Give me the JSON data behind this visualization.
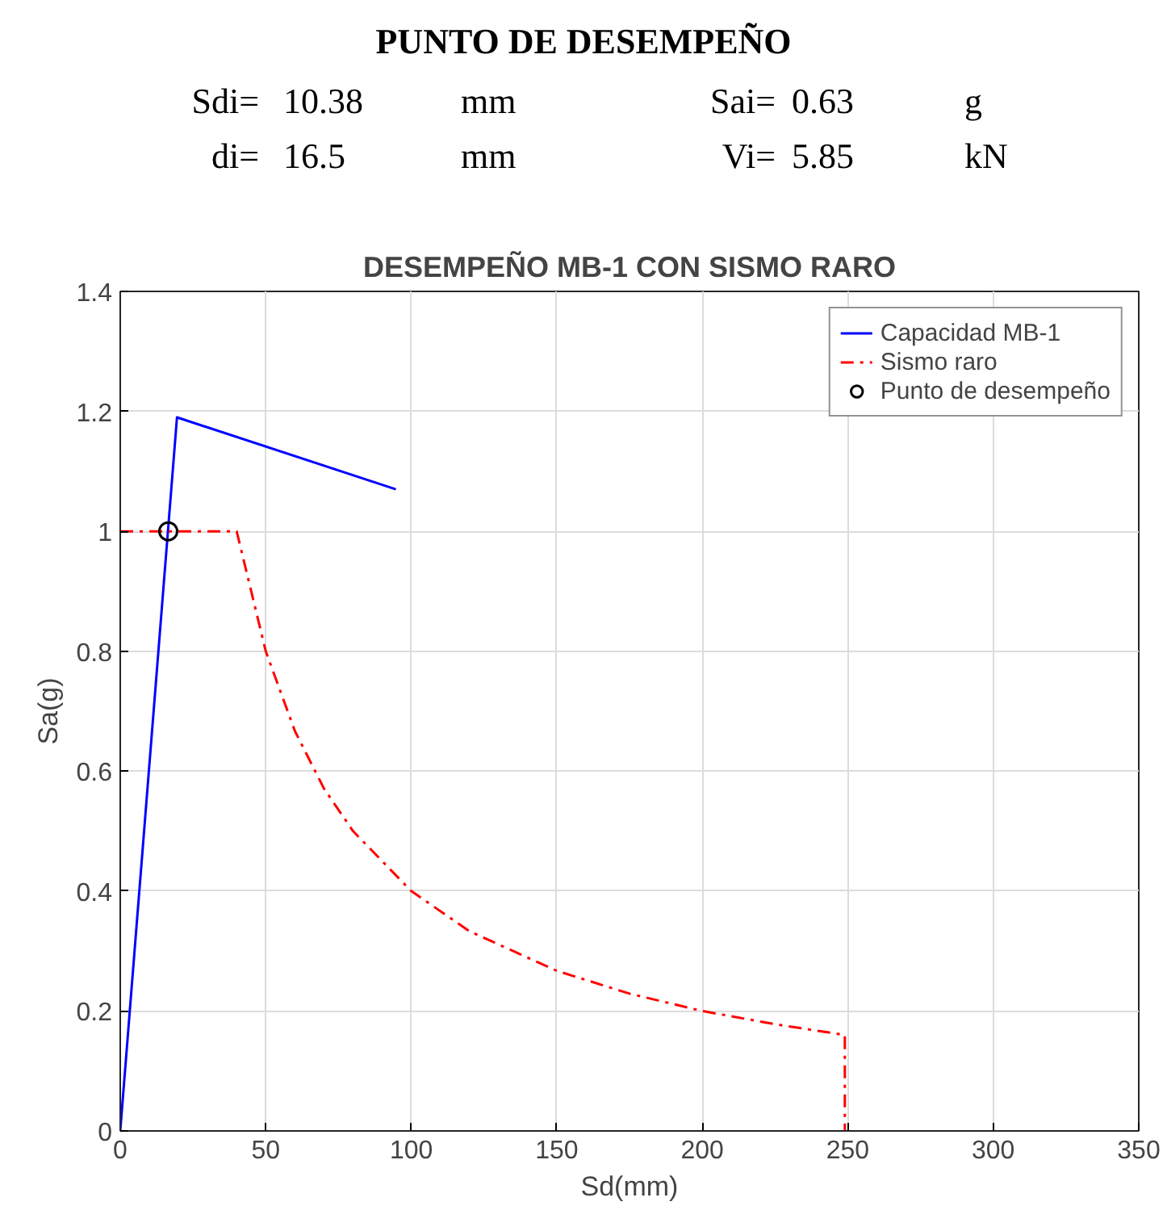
{
  "chart_data": {
    "type": "line",
    "title": "DESEMPEÑO MB-1 CON SISMO RARO",
    "xlabel": "Sd(mm)",
    "ylabel": "Sa(g)",
    "annotations": [
      "PUNTO DE DESEMPEÑO",
      "Sdi=",
      "10.38",
      "mm",
      "Sai=",
      "0.63",
      "g",
      "di=",
      "16.5",
      "mm",
      "Vi=",
      "5.85",
      "kN"
    ],
    "series": [
      {
        "name": "Capacidad MB-1",
        "color": "#0000ff",
        "type": "line",
        "line_style": "solid",
        "x": [
          0,
          19.5,
          94.7
        ],
        "values": [
          0,
          1.19,
          1.07
        ]
      },
      {
        "name": "Sismo raro",
        "color": "#ff0000",
        "type": "line",
        "line_style": "dashdot",
        "x": [
          0,
          40,
          50,
          60,
          70,
          80,
          100,
          120,
          150,
          175,
          200,
          225,
          249,
          249
        ],
        "values": [
          1,
          1,
          0.8,
          0.667,
          0.571,
          0.5,
          0.4,
          0.333,
          0.267,
          0.229,
          0.2,
          0.178,
          0.16,
          0
        ]
      },
      {
        "name": "Punto de desempeño",
        "color": "#000000",
        "type": "scatter",
        "marker": "circle",
        "x": [
          16.5
        ],
        "values": [
          1
        ]
      }
    ],
    "xlim": [
      0,
      350
    ],
    "ylim": [
      0,
      1.4
    ],
    "xticks": [
      0,
      50,
      100,
      150,
      200,
      250,
      300,
      350
    ],
    "yticks": [
      0,
      0.2,
      0.4,
      0.6,
      0.8,
      1,
      1.2,
      1.4
    ],
    "grid": true,
    "legend": "top right"
  }
}
